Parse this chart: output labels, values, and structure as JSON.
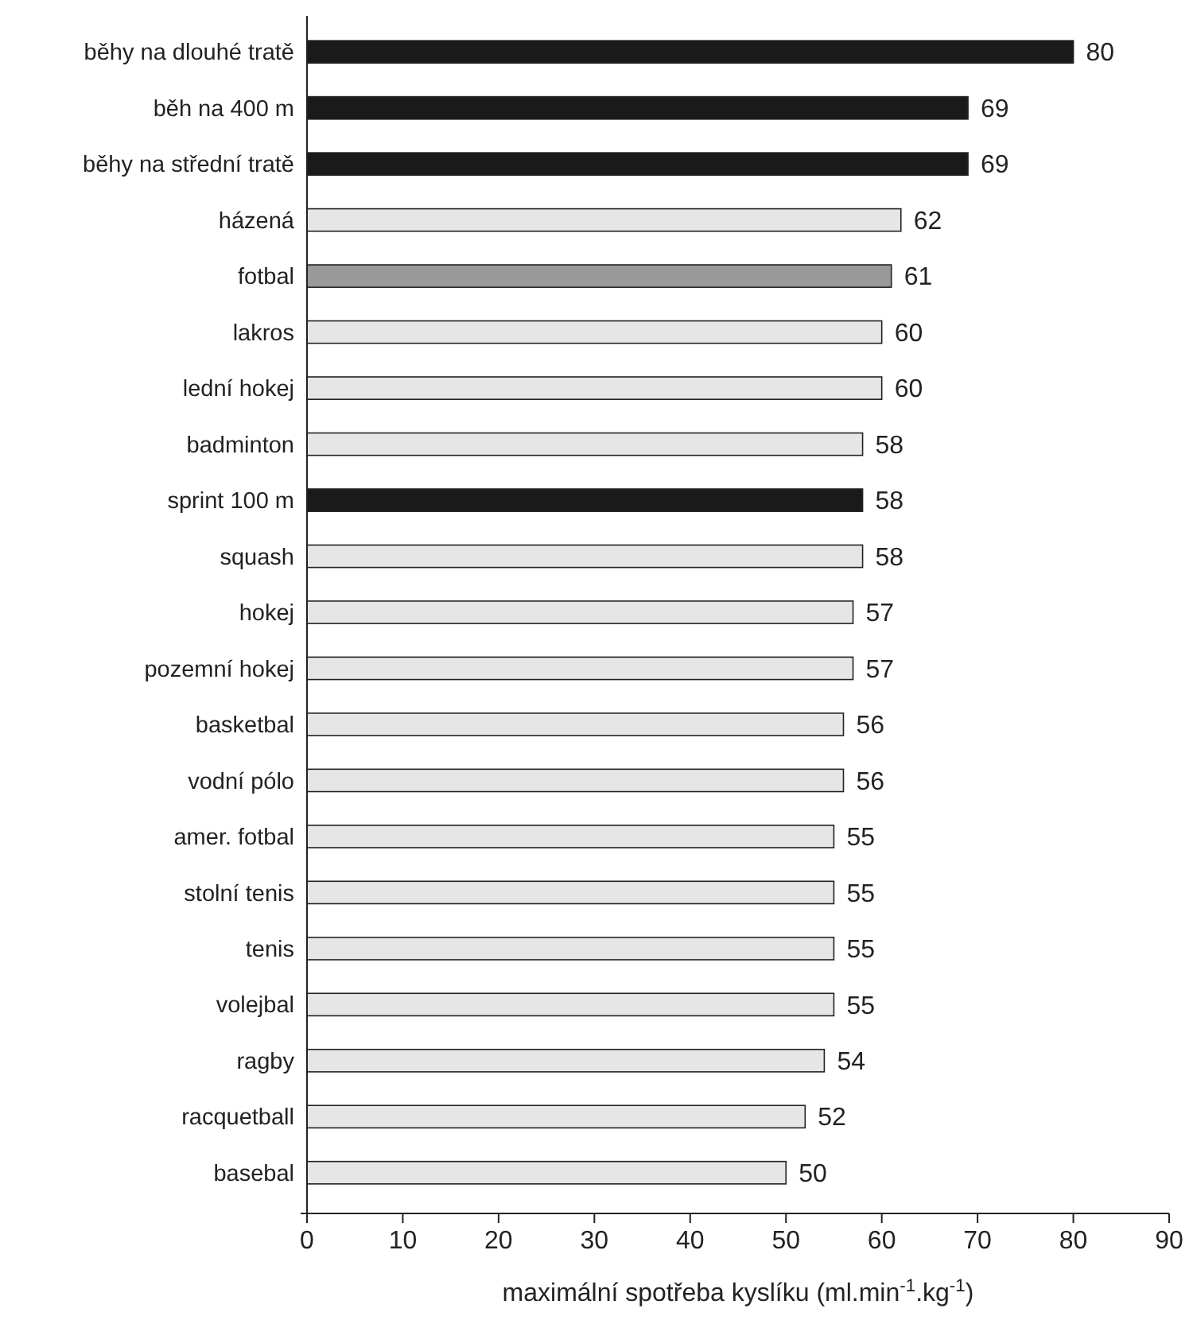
{
  "chart_data": {
    "type": "bar",
    "orientation": "horizontal",
    "xlabel": "maximální spotřeba kyslíku (ml.min$^{-1}$.kg$^{-1}$)",
    "categories": [
      "běhy na dlouhé tratě",
      "běh na 400 m",
      "běhy na střední tratě",
      "házená",
      "fotbal",
      "lakros",
      "lední hokej",
      "badminton",
      "sprint 100 m",
      "squash",
      "hokej",
      "pozemní hokej",
      "basketbal",
      "vodní pólo",
      "amer. fotbal",
      "stolní tenis",
      "tenis",
      "volejbal",
      "ragby",
      "racquetball",
      "basebal"
    ],
    "values": [
      80,
      69,
      69,
      62,
      61,
      60,
      60,
      58,
      58,
      58,
      57,
      57,
      56,
      56,
      55,
      55,
      55,
      55,
      54,
      52,
      50
    ],
    "colors": [
      "#1a1a1a",
      "#1a1a1a",
      "#1a1a1a",
      "#e6e6e6",
      "#999999",
      "#e6e6e6",
      "#e6e6e6",
      "#e6e6e6",
      "#1a1a1a",
      "#e6e6e6",
      "#e6e6e6",
      "#e6e6e6",
      "#e6e6e6",
      "#e6e6e6",
      "#e6e6e6",
      "#e6e6e6",
      "#e6e6e6",
      "#e6e6e6",
      "#e6e6e6",
      "#e6e6e6",
      "#e6e6e6"
    ],
    "xlim": [
      0,
      90
    ],
    "xticks": [
      0,
      10,
      20,
      30,
      40,
      50,
      60,
      70,
      80,
      90
    ],
    "data_labels": true,
    "grid": false
  }
}
